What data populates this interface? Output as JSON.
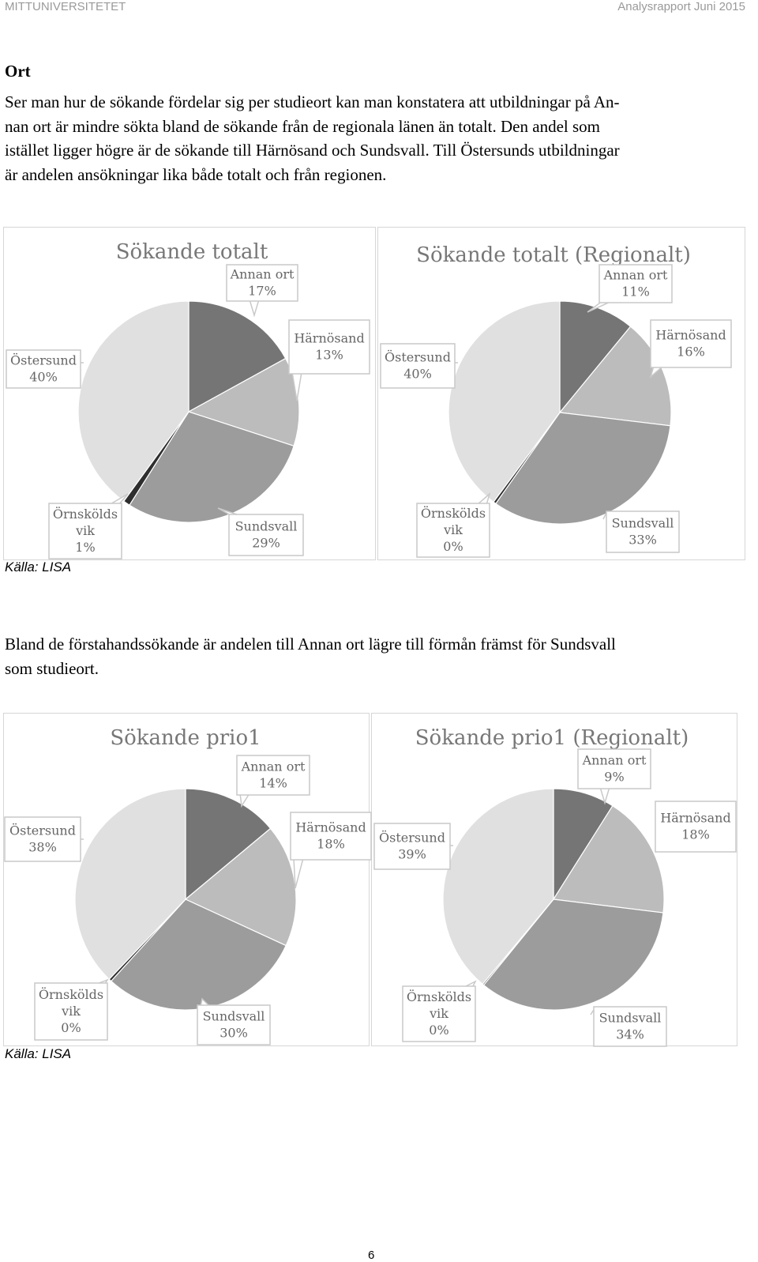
{
  "header": {
    "org": "MITTUNIVERSITETET",
    "report": "Analysrapport Juni 2015"
  },
  "section_heading": "Ort",
  "paragraph1_lines": [
    "Ser man hur de sökande fördelar sig per studieort kan man konstatera att utbildningar på An-",
    "nan ort är mindre sökta bland de sökande från de regionala länen än totalt. Den andel som",
    "istället ligger högre är de sökande till Härnösand och Sundsvall. Till Östersunds utbildningar",
    "är andelen ansökningar lika både totalt och från regionen."
  ],
  "paragraph2_lines": [
    "Bland de förstahandssökande är andelen till Annan ort lägre till förmån främst för Sundsvall",
    "som studieort."
  ],
  "source_label": "Källa: LISA",
  "page_number": "6",
  "colors": {
    "Annan ort": "#757575",
    "Härnösand": "#bcbcbc",
    "Sundsvall": "#9c9c9c",
    "Örnskölds vik": "#2e2e2e",
    "Östersund": "#e0e0e0"
  },
  "chart_data": [
    {
      "type": "pie",
      "title": "Sökande totalt",
      "slices": [
        {
          "label": [
            "Annan ort"
          ],
          "value": 17,
          "text": "17%"
        },
        {
          "label": [
            "Härnösand"
          ],
          "value": 13,
          "text": "13%"
        },
        {
          "label": [
            "Sundsvall"
          ],
          "value": 29,
          "text": "29%"
        },
        {
          "label": [
            "Örnskölds",
            "vik"
          ],
          "value": 1,
          "text": "1%"
        },
        {
          "label": [
            "Östersund"
          ],
          "value": 40,
          "text": "40%"
        }
      ]
    },
    {
      "type": "pie",
      "title": "Sökande totalt (Regionalt)",
      "slices": [
        {
          "label": [
            "Annan ort"
          ],
          "value": 11,
          "text": "11%"
        },
        {
          "label": [
            "Härnösand"
          ],
          "value": 16,
          "text": "16%"
        },
        {
          "label": [
            "Sundsvall"
          ],
          "value": 33,
          "text": "33%"
        },
        {
          "label": [
            "Örnskölds",
            "vik"
          ],
          "value": 0.4,
          "text": "0%"
        },
        {
          "label": [
            "Östersund"
          ],
          "value": 40,
          "text": "40%"
        }
      ]
    },
    {
      "type": "pie",
      "title": "Sökande prio1",
      "slices": [
        {
          "label": [
            "Annan ort"
          ],
          "value": 14,
          "text": "14%"
        },
        {
          "label": [
            "Härnösand"
          ],
          "value": 18,
          "text": "18%"
        },
        {
          "label": [
            "Sundsvall"
          ],
          "value": 30,
          "text": "30%"
        },
        {
          "label": [
            "Örnskölds",
            "vik"
          ],
          "value": 0.4,
          "text": "0%"
        },
        {
          "label": [
            "Östersund"
          ],
          "value": 38,
          "text": "38%"
        }
      ]
    },
    {
      "type": "pie",
      "title": "Sökande prio1 (Regionalt)",
      "slices": [
        {
          "label": [
            "Annan ort"
          ],
          "value": 9,
          "text": "9%"
        },
        {
          "label": [
            "Härnösand"
          ],
          "value": 18,
          "text": "18%"
        },
        {
          "label": [
            "Sundsvall"
          ],
          "value": 34,
          "text": "34%"
        },
        {
          "label": [
            "Örnskölds",
            "vik"
          ],
          "value": 0.2,
          "text": "0%"
        },
        {
          "label": [
            "Östersund"
          ],
          "value": 39,
          "text": "39%"
        }
      ]
    }
  ]
}
